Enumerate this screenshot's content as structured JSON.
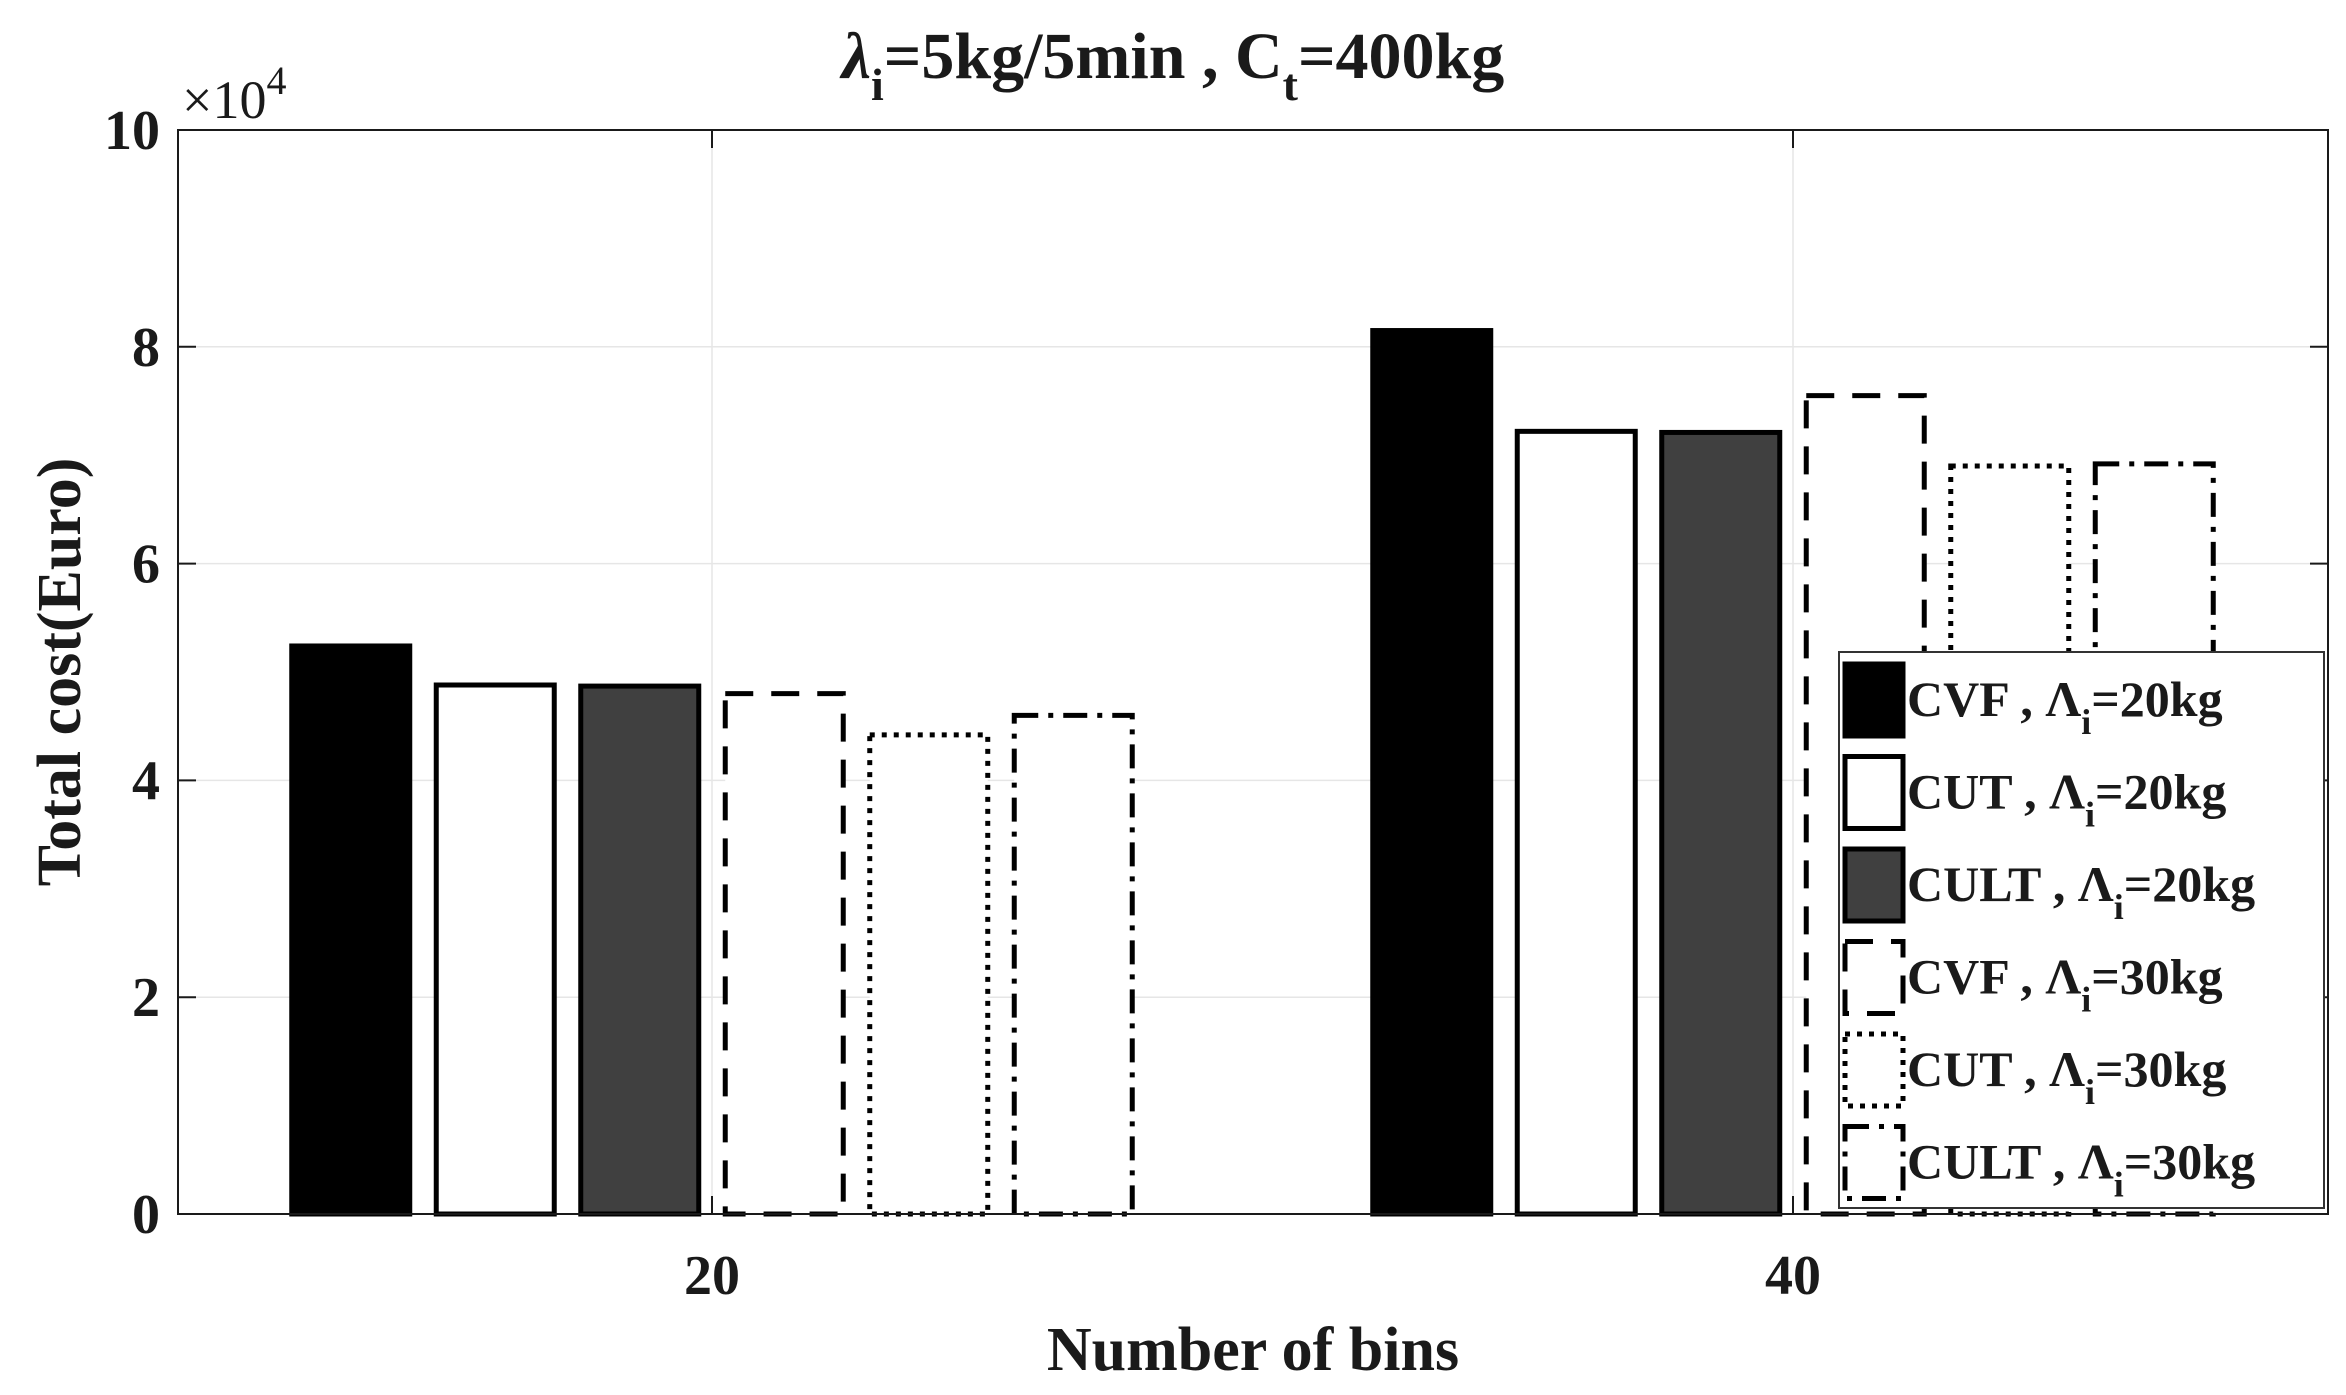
{
  "chart_data": {
    "type": "bar",
    "title": {
      "lambda_symbol": "λ",
      "lambda_sub": "i",
      "lambda_rest": "=5kg/5min , C",
      "ct_sub": "t",
      "ct_rest": "=400kg"
    },
    "xlabel": "Number of bins",
    "ylabel": "Total cost(Euro)",
    "categories": [
      "20",
      "40"
    ],
    "ylim": [
      0,
      100000
    ],
    "y_ticks": [
      0,
      20000,
      40000,
      60000,
      80000,
      100000
    ],
    "y_tick_labels": [
      "0",
      "2",
      "4",
      "6",
      "8",
      "10"
    ],
    "y_exponent_base": "×10",
    "y_exponent_power": "4",
    "grid": true,
    "legend_position": "right",
    "series": [
      {
        "name": "CVF , Λi=20kg",
        "label_main": "CVF , Λ",
        "label_sub": "i",
        "label_tail": "=20kg",
        "values": [
          52400,
          81500
        ],
        "fill": "#000000",
        "dash": "solid"
      },
      {
        "name": "CUT , Λi=20kg",
        "label_main": "CUT , Λ",
        "label_sub": "i",
        "label_tail": "=20kg",
        "values": [
          48800,
          72200
        ],
        "fill": "#ffffff",
        "dash": "solid"
      },
      {
        "name": "CULT , Λi=20kg",
        "label_main": "CULT , Λ",
        "label_sub": "i",
        "label_tail": "=20kg",
        "values": [
          48700,
          72100
        ],
        "fill": "#404040",
        "dash": "solid"
      },
      {
        "name": "CVF , Λi=30kg",
        "label_main": "CVF , Λ",
        "label_sub": "i",
        "label_tail": "=30kg",
        "values": [
          48000,
          75500
        ],
        "fill": "#ffffff",
        "dash": "dashed"
      },
      {
        "name": "CUT , Λi=30kg",
        "label_main": "CUT , Λ",
        "label_sub": "i",
        "label_tail": "=30kg",
        "values": [
          44200,
          69000
        ],
        "fill": "#ffffff",
        "dash": "dotted"
      },
      {
        "name": "CULT , Λi=30kg",
        "label_main": "CULT , Λ",
        "label_sub": "i",
        "label_tail": "=30kg",
        "values": [
          46000,
          69200
        ],
        "fill": "#ffffff",
        "dash": "dashdot"
      }
    ]
  }
}
